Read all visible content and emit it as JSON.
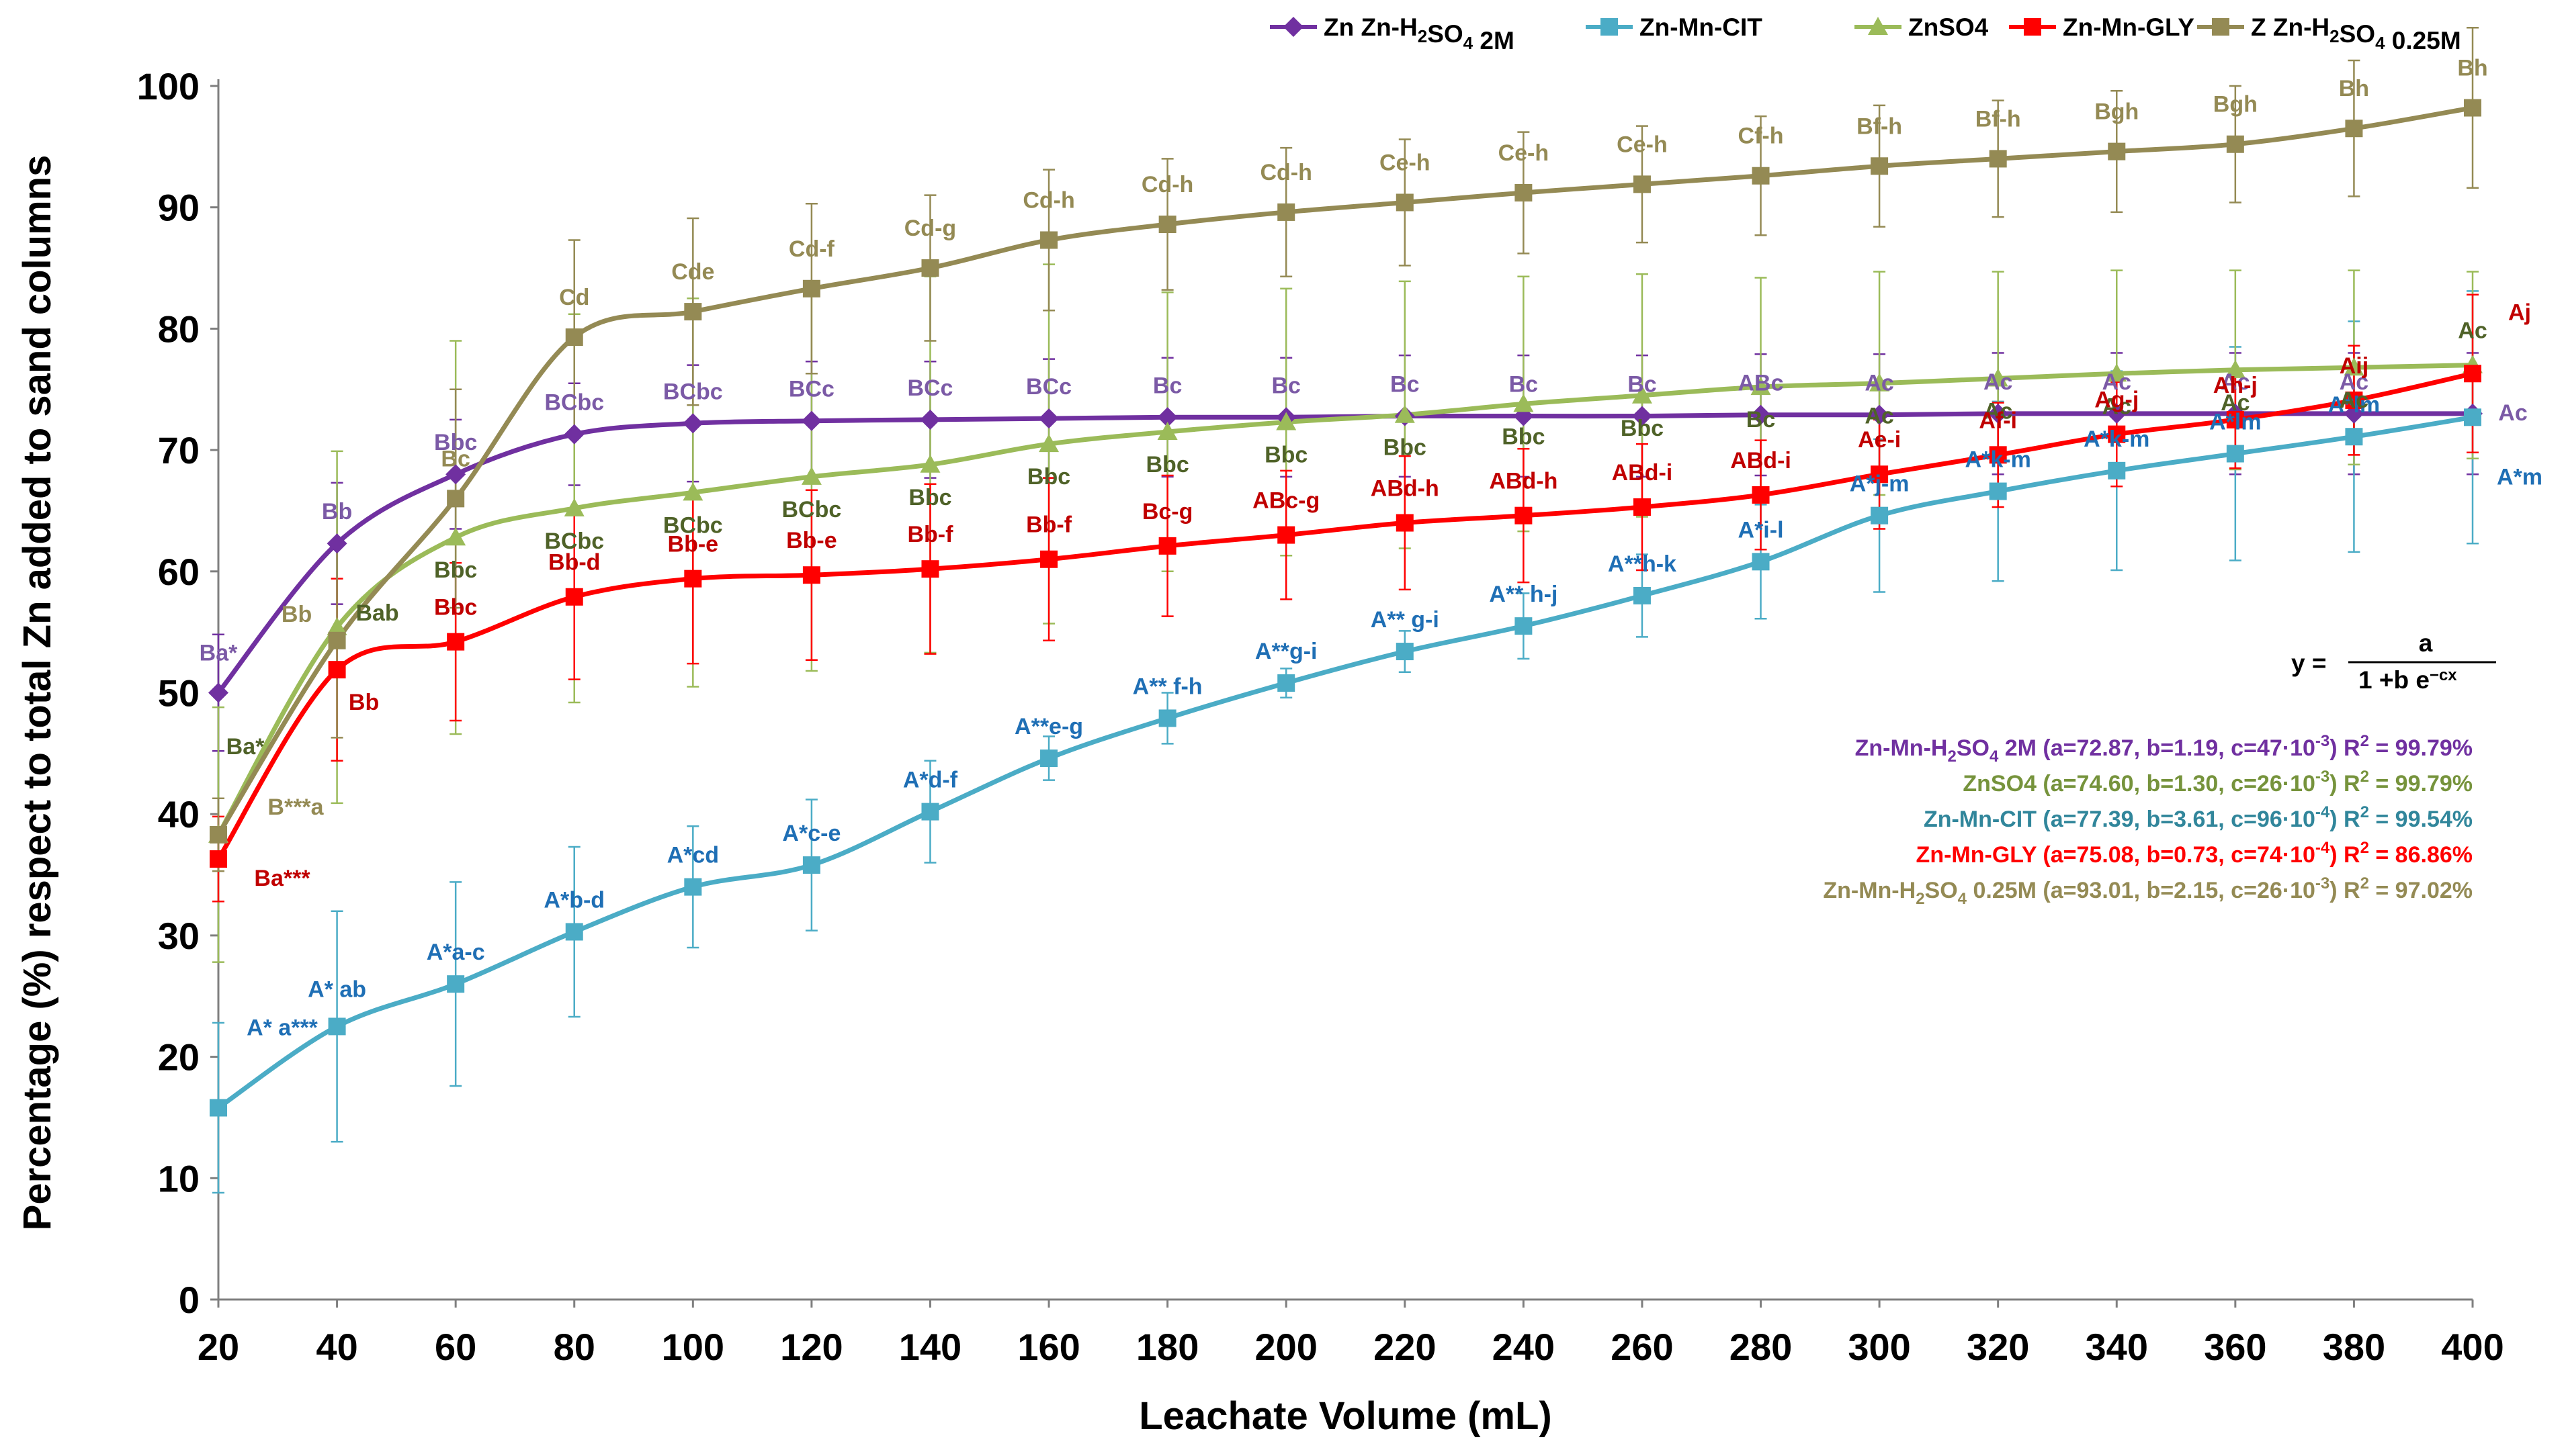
{
  "chart_data": {
    "type": "line",
    "title": "",
    "xlabel": "Leachate Volume (mL)",
    "ylabel": "Percentage (%) respect to total Zn added to sand columns",
    "xlim": [
      20,
      400
    ],
    "ylim": [
      0,
      100
    ],
    "x_ticks": [
      20,
      40,
      60,
      80,
      100,
      120,
      140,
      160,
      180,
      200,
      220,
      240,
      260,
      280,
      300,
      320,
      340,
      360,
      380,
      400
    ],
    "y_ticks": [
      0,
      10,
      20,
      30,
      40,
      50,
      60,
      70,
      80,
      90,
      100
    ],
    "x": [
      20,
      40,
      60,
      80,
      100,
      120,
      140,
      160,
      180,
      200,
      220,
      240,
      260,
      280,
      300,
      320,
      340,
      360,
      380,
      400
    ],
    "legend_position": "top",
    "series": [
      {
        "name": "Zn-Mn-H2SO4 2M",
        "legend_parts": [
          "Zn  Zn-H",
          "2",
          "SO",
          "4",
          " 2M"
        ],
        "color": "#7030a0",
        "label_color": "#7b5aa6",
        "marker": "diamond",
        "values": [
          50.0,
          62.3,
          68.0,
          71.3,
          72.2,
          72.4,
          72.5,
          72.6,
          72.7,
          72.7,
          72.8,
          72.8,
          72.8,
          72.9,
          72.9,
          73.0,
          73.0,
          73.0,
          73.0,
          73.0
        ],
        "errors": [
          4.8,
          5.0,
          4.5,
          4.2,
          4.8,
          4.9,
          4.8,
          4.9,
          4.9,
          4.9,
          5.0,
          5.0,
          5.0,
          5.0,
          5.0,
          5.0,
          5.0,
          5.0,
          5.0,
          5.0
        ],
        "labels": [
          "Ba*",
          "Bb",
          "Bbc",
          "BCbc",
          "BCbc",
          "BCc",
          "BCc",
          "BCc",
          "Bc",
          "Bc",
          "Bc",
          "Bc",
          "Bc",
          "ABc",
          "Ac",
          "Ac",
          "Ac",
          "Ac",
          "Ac",
          "Ac"
        ]
      },
      {
        "name": "Zn-Mn-CIT",
        "legend_parts": [
          "Zn-Mn-CIT"
        ],
        "color": "#4bacc6",
        "label_color": "#1f6fb5",
        "marker": "square",
        "values": [
          15.8,
          22.5,
          26.0,
          30.3,
          34.0,
          35.8,
          40.2,
          44.6,
          47.9,
          50.8,
          53.4,
          55.5,
          58.0,
          60.8,
          64.6,
          66.6,
          68.3,
          69.7,
          71.1,
          72.7
        ],
        "errors": [
          7.0,
          9.5,
          8.4,
          7.0,
          5.0,
          5.4,
          4.2,
          1.8,
          2.1,
          1.2,
          1.7,
          2.7,
          3.4,
          4.7,
          6.3,
          7.4,
          8.2,
          8.8,
          9.5,
          10.4
        ],
        "labels": [
          "A* a***",
          "A* ab",
          "A*a-c",
          "A*b-d",
          "A*cd",
          "A*c-e",
          "A*d-f",
          "A**e-g",
          "A** f-h",
          "A**g-i",
          "A** g-i",
          "A** h-j",
          "A**h-k",
          "A*i-l",
          "A*j-m",
          "A*k-m",
          "A*k-m",
          "A*lm",
          "A*lm",
          "A*m"
        ]
      },
      {
        "name": "ZnSO4",
        "legend_parts": [
          "ZnSO4"
        ],
        "color": "#9bbb59",
        "label_color": "#4f6228",
        "marker": "triangle",
        "values": [
          38.3,
          55.4,
          62.8,
          65.2,
          66.5,
          67.8,
          68.8,
          70.5,
          71.5,
          72.3,
          72.9,
          73.8,
          74.5,
          75.2,
          75.5,
          75.9,
          76.3,
          76.6,
          76.8,
          77.0
        ],
        "errors": [
          10.5,
          14.5,
          16.2,
          16.0,
          16.0,
          16.0,
          15.5,
          14.8,
          11.5,
          11.0,
          11.0,
          10.5,
          10.0,
          9.0,
          9.2,
          8.8,
          8.5,
          8.2,
          8.0,
          7.7
        ],
        "labels": [
          "Ba*",
          "Bab",
          "Bbc",
          "BCbc",
          "BCbc",
          "BCbc",
          "Bbc",
          "Bbc",
          "Bbc",
          "Bbc",
          "Bbc",
          "Bbc",
          "Bbc",
          "Bc",
          "Ac",
          "Ac",
          "Ac",
          "Ac",
          "Ac",
          "Ac"
        ]
      },
      {
        "name": "Zn-Mn-GLY",
        "legend_parts": [
          "Zn-Mn-GLY"
        ],
        "color": "#ff0000",
        "label_color": "#c00000",
        "marker": "square",
        "values": [
          36.3,
          51.9,
          54.2,
          57.9,
          59.4,
          59.7,
          60.2,
          61.0,
          62.1,
          63.0,
          64.0,
          64.6,
          65.3,
          66.3,
          68.0,
          69.6,
          71.3,
          72.5,
          74.1,
          76.3
        ],
        "errors": [
          3.5,
          7.5,
          6.5,
          6.8,
          7.0,
          7.0,
          7.0,
          6.7,
          5.8,
          5.3,
          5.5,
          5.5,
          5.2,
          4.5,
          4.5,
          4.3,
          4.3,
          4.0,
          4.5,
          6.5
        ],
        "labels": [
          "Ba***",
          "Bb",
          "Bbc",
          "Bb-d",
          "Bb-e",
          "Bb-e",
          "Bb-f",
          "Bb-f",
          "Bc-g",
          "ABc-g",
          "ABd-h",
          "ABd-h",
          "ABd-i",
          "ABd-i",
          "Ae-i",
          "Af-i",
          "Ag-j",
          "Ah-j",
          "Aij",
          "Aj"
        ]
      },
      {
        "name": "Zn-Mn-H2SO4 0.25M",
        "legend_parts": [
          "Z  Zn-H",
          "2",
          "SO",
          "4",
          " 0.25M"
        ],
        "color": "#948a54",
        "label_color": "#948a54",
        "marker": "square",
        "values": [
          38.3,
          54.3,
          66.0,
          79.3,
          81.4,
          83.3,
          85.0,
          87.3,
          88.6,
          89.6,
          90.4,
          91.2,
          91.9,
          92.6,
          93.4,
          94.0,
          94.6,
          95.2,
          96.5,
          98.2
        ],
        "errors": [
          3.0,
          8.0,
          9.0,
          8.0,
          7.7,
          7.0,
          6.0,
          5.8,
          5.4,
          5.3,
          5.2,
          5.0,
          4.8,
          4.9,
          5.0,
          4.8,
          5.0,
          4.8,
          5.6,
          6.6
        ],
        "labels": [
          "B***a",
          "Bb",
          "Bc",
          "Cd",
          "Cde",
          "Cd-f",
          "Cd-g",
          "Cd-h",
          "Cd-h",
          "Cd-h",
          "Ce-h",
          "Ce-h",
          "Ce-h",
          "Cf-h",
          "Bf-h",
          "Bf-h",
          "Bgh",
          "Bgh",
          "Bh",
          "Bh"
        ]
      }
    ],
    "equation": {
      "lhs": "y =",
      "numerator": "a",
      "denominator": "1 +b  e",
      "exponent": "−cx"
    },
    "fit_results": [
      {
        "parts": [
          "Zn-Mn-H",
          "2",
          "SO",
          "4",
          " 2M (a=72.87, b=1.19, c=47·10",
          "-3",
          ") R",
          "2",
          " = 99.79%"
        ],
        "color": "#7030a0"
      },
      {
        "parts": [
          "ZnSO",
          "4",
          " (a=74.60, b=1.30, c=26·10",
          "-3",
          ") R",
          "2",
          " = 99.79%"
        ],
        "color": "#76933c"
      },
      {
        "parts": [
          "Zn-Mn-CIT (a=77.39, b=3.61, c=96·10",
          "-4",
          ") R",
          "2",
          " = 99.54%"
        ],
        "color": "#31869b"
      },
      {
        "parts": [
          "Zn-Mn-GLY (a=75.08, b=0.73, c=74·10",
          "-4",
          ") R",
          "2",
          " = 86.86%"
        ],
        "color": "#ff0000"
      },
      {
        "parts": [
          "Zn-Mn-H",
          "2",
          "SO",
          "4",
          " 0.25M (a=93.01, b=2.15, c=26·10",
          "-3",
          ") R",
          "2",
          " = 97.02%"
        ],
        "color": "#948a54"
      }
    ]
  }
}
